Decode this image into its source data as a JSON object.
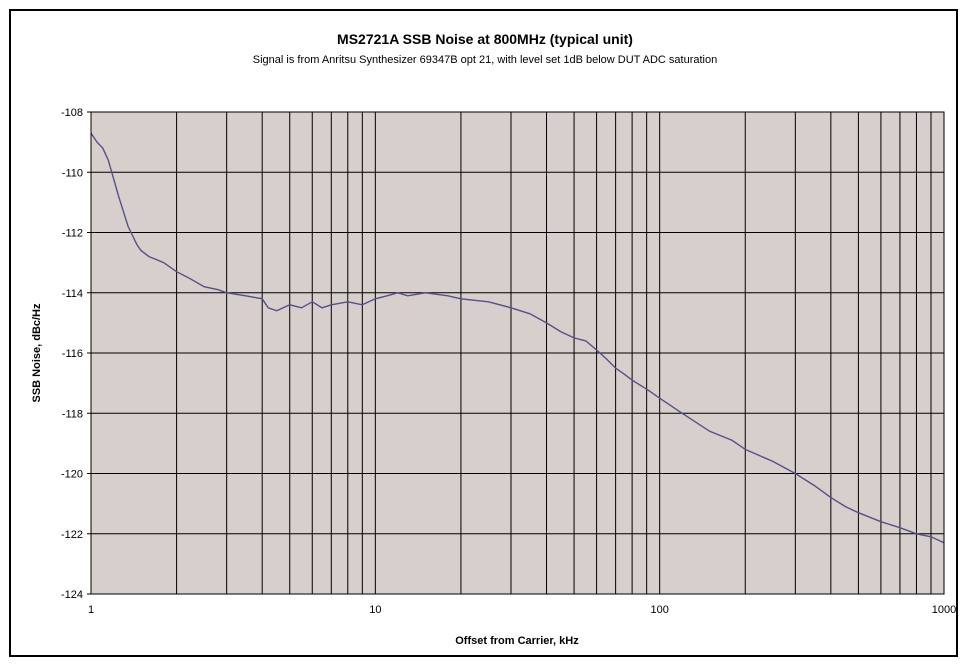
{
  "chart_data": {
    "type": "line",
    "title": "MS2721A SSB Noise at 800MHz (typical unit)",
    "subtitle": "Signal is from Anritsu Synthesizer 69347B opt 21, with level set 1dB below DUT ADC saturation",
    "xlabel": "Offset from Carrier, kHz",
    "ylabel": "SSB Noise, dBc/Hz",
    "x_scale": "log",
    "xlim": [
      1,
      1000
    ],
    "ylim": [
      -124,
      -108
    ],
    "x_ticks": [
      1,
      10,
      100,
      1000
    ],
    "x_tick_labels": [
      "1",
      "10",
      "100",
      "1000"
    ],
    "y_ticks": [
      -108,
      -110,
      -112,
      -114,
      -116,
      -118,
      -120,
      -122,
      -124
    ],
    "y_tick_labels": [
      "-108",
      "-110",
      "-112",
      "-114",
      "-116",
      "-118",
      "-120",
      "-122",
      "-124"
    ],
    "grid": true,
    "legend": "none",
    "plot_background": "#d7cfcb",
    "line_color": "#54508a",
    "series": [
      {
        "x": [
          1,
          1.05,
          1.1,
          1.15,
          1.2,
          1.25,
          1.3,
          1.35,
          1.4,
          1.45,
          1.5,
          1.6,
          1.7,
          1.8,
          2.0,
          2.2,
          2.5,
          2.8,
          3.0,
          3.5,
          4.0,
          4.2,
          4.5,
          5.0,
          5.5,
          6.0,
          6.5,
          7.0,
          8.0,
          9.0,
          10,
          11,
          12,
          13,
          15,
          18,
          20,
          25,
          30,
          35,
          40,
          45,
          50,
          55,
          60,
          65,
          70,
          75,
          80,
          90,
          100,
          120,
          150,
          180,
          200,
          250,
          300,
          350,
          400,
          450,
          500,
          600,
          700,
          800,
          900,
          1000
        ],
        "y": [
          -108.7,
          -109.0,
          -109.2,
          -109.6,
          -110.2,
          -110.8,
          -111.3,
          -111.8,
          -112.1,
          -112.4,
          -112.6,
          -112.8,
          -112.9,
          -113.0,
          -113.3,
          -113.5,
          -113.8,
          -113.9,
          -114.0,
          -114.1,
          -114.2,
          -114.5,
          -114.6,
          -114.4,
          -114.5,
          -114.3,
          -114.5,
          -114.4,
          -114.3,
          -114.4,
          -114.2,
          -114.1,
          -114.0,
          -114.1,
          -114.0,
          -114.1,
          -114.2,
          -114.3,
          -114.5,
          -114.7,
          -115.0,
          -115.3,
          -115.5,
          -115.6,
          -115.9,
          -116.2,
          -116.5,
          -116.7,
          -116.9,
          -117.2,
          -117.5,
          -118.0,
          -118.6,
          -118.9,
          -119.2,
          -119.6,
          -120.0,
          -120.4,
          -120.8,
          -121.1,
          -121.3,
          -121.6,
          -121.8,
          -122.0,
          -122.1,
          -122.3
        ]
      }
    ]
  }
}
